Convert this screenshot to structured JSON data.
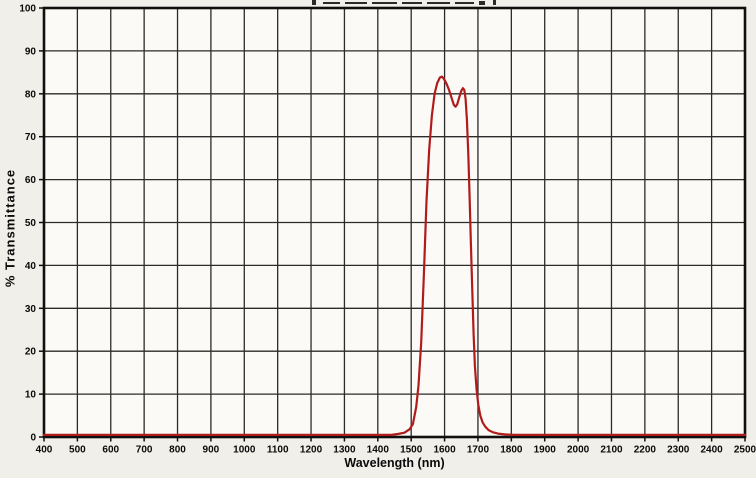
{
  "chart_data": {
    "type": "line",
    "title": "",
    "xlabel": "Wavelength (nm)",
    "ylabel": "% Transmittance",
    "xlim": [
      400,
      2500
    ],
    "ylim": [
      0,
      100
    ],
    "x_ticks": [
      400,
      500,
      600,
      700,
      800,
      900,
      1000,
      1100,
      1200,
      1300,
      1400,
      1500,
      1600,
      1700,
      1800,
      1900,
      2000,
      2100,
      2200,
      2300,
      2400,
      2500
    ],
    "y_ticks": [
      0,
      10,
      20,
      30,
      40,
      50,
      60,
      70,
      80,
      90,
      100
    ],
    "grid": true,
    "legend": "none",
    "colors": {
      "background": "#f1efe9",
      "plot_background": "#fbfaf6",
      "gridline": "#2b2b2b",
      "border": "#0f0f0f",
      "text": "#0a0a0a",
      "curve": "#b01c1c"
    },
    "series": [
      {
        "name": "transmittance",
        "color": "#b01c1c",
        "points": [
          [
            400,
            0.5
          ],
          [
            500,
            0.5
          ],
          [
            600,
            0.5
          ],
          [
            700,
            0.5
          ],
          [
            800,
            0.5
          ],
          [
            900,
            0.5
          ],
          [
            1000,
            0.5
          ],
          [
            1100,
            0.5
          ],
          [
            1200,
            0.5
          ],
          [
            1300,
            0.5
          ],
          [
            1400,
            0.5
          ],
          [
            1440,
            0.5
          ],
          [
            1460,
            0.7
          ],
          [
            1480,
            1.0
          ],
          [
            1495,
            1.8
          ],
          [
            1505,
            3.0
          ],
          [
            1515,
            7.0
          ],
          [
            1522,
            12.0
          ],
          [
            1530,
            22.0
          ],
          [
            1538,
            38.0
          ],
          [
            1546,
            55.0
          ],
          [
            1554,
            67.0
          ],
          [
            1562,
            75.0
          ],
          [
            1570,
            80.0
          ],
          [
            1578,
            82.5
          ],
          [
            1586,
            83.8
          ],
          [
            1592,
            84.0
          ],
          [
            1598,
            83.5
          ],
          [
            1606,
            82.3
          ],
          [
            1614,
            80.8
          ],
          [
            1622,
            78.8
          ],
          [
            1628,
            77.4
          ],
          [
            1633,
            77.0
          ],
          [
            1638,
            77.6
          ],
          [
            1644,
            79.2
          ],
          [
            1650,
            80.7
          ],
          [
            1655,
            81.3
          ],
          [
            1659,
            80.9
          ],
          [
            1663,
            78.8
          ],
          [
            1667,
            74.0
          ],
          [
            1671,
            66.0
          ],
          [
            1675,
            56.0
          ],
          [
            1679,
            45.0
          ],
          [
            1683,
            34.0
          ],
          [
            1687,
            24.0
          ],
          [
            1691,
            16.5
          ],
          [
            1696,
            11.0
          ],
          [
            1701,
            7.5
          ],
          [
            1707,
            5.0
          ],
          [
            1714,
            3.4
          ],
          [
            1722,
            2.4
          ],
          [
            1732,
            1.6
          ],
          [
            1745,
            1.1
          ],
          [
            1760,
            0.8
          ],
          [
            1780,
            0.6
          ],
          [
            1810,
            0.5
          ],
          [
            1900,
            0.5
          ],
          [
            2000,
            0.5
          ],
          [
            2100,
            0.5
          ],
          [
            2200,
            0.5
          ],
          [
            2300,
            0.5
          ],
          [
            2400,
            0.5
          ],
          [
            2500,
            0.5
          ]
        ]
      }
    ]
  }
}
